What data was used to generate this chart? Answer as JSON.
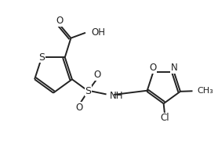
{
  "background_color": "#ffffff",
  "line_color": "#222222",
  "text_color": "#222222",
  "line_width": 1.4,
  "font_size": 8.5,
  "figsize": [
    2.78,
    1.98
  ],
  "dpi": 100,
  "xlim": [
    0,
    10
  ],
  "ylim": [
    0,
    7.2
  ]
}
